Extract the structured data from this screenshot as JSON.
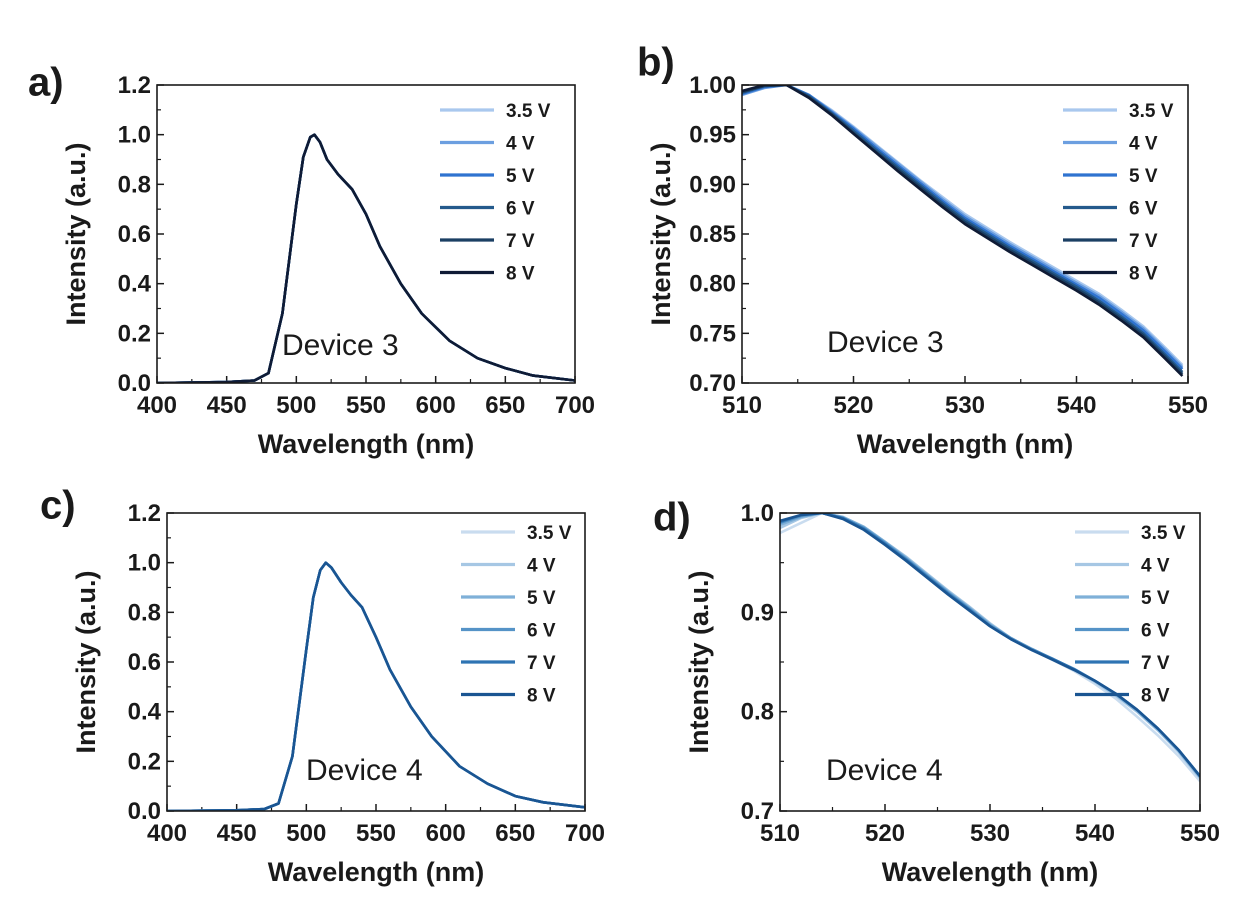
{
  "chart_data": [
    {
      "panel": "a)",
      "type": "line",
      "xlabel": "Wavelength (nm)",
      "ylabel": "Intensity (a.u.)",
      "xlim": [
        400,
        700
      ],
      "ylim": [
        0,
        1.2
      ],
      "xticks": [
        "400",
        "450",
        "500",
        "550",
        "600",
        "650",
        "700"
      ],
      "yticks": [
        "0.0",
        "0.2",
        "0.4",
        "0.6",
        "0.8",
        "1.0",
        "1.2"
      ],
      "annotation": "Device 3",
      "legend_position": "top-right",
      "x": [
        400,
        450,
        470,
        480,
        490,
        500,
        505,
        510,
        513,
        517,
        522,
        530,
        540,
        550,
        560,
        575,
        590,
        610,
        630,
        650,
        670,
        700
      ],
      "series": [
        {
          "name": "3.5 V",
          "color": "#a9c8ee",
          "values": [
            0,
            0.004,
            0.01,
            0.04,
            0.28,
            0.72,
            0.91,
            0.99,
            1.0,
            0.97,
            0.9,
            0.84,
            0.78,
            0.68,
            0.55,
            0.4,
            0.28,
            0.17,
            0.1,
            0.06,
            0.03,
            0.01
          ]
        },
        {
          "name": "4 V",
          "color": "#6c9fe0",
          "values": [
            0,
            0.004,
            0.01,
            0.04,
            0.28,
            0.72,
            0.91,
            0.99,
            1.0,
            0.97,
            0.9,
            0.84,
            0.78,
            0.68,
            0.55,
            0.4,
            0.28,
            0.17,
            0.1,
            0.06,
            0.03,
            0.01
          ]
        },
        {
          "name": "5 V",
          "color": "#2f73d0",
          "values": [
            0,
            0.004,
            0.01,
            0.04,
            0.28,
            0.72,
            0.91,
            0.99,
            1.0,
            0.97,
            0.9,
            0.84,
            0.78,
            0.68,
            0.55,
            0.4,
            0.28,
            0.17,
            0.1,
            0.06,
            0.03,
            0.01
          ]
        },
        {
          "name": "6 V",
          "color": "#245a8c",
          "values": [
            0,
            0.004,
            0.01,
            0.04,
            0.28,
            0.72,
            0.91,
            0.99,
            1.0,
            0.97,
            0.9,
            0.84,
            0.78,
            0.68,
            0.55,
            0.4,
            0.28,
            0.17,
            0.1,
            0.06,
            0.03,
            0.01
          ]
        },
        {
          "name": "7 V",
          "color": "#1b3f63",
          "values": [
            0,
            0.004,
            0.01,
            0.04,
            0.28,
            0.72,
            0.91,
            0.99,
            1.0,
            0.97,
            0.9,
            0.84,
            0.78,
            0.68,
            0.55,
            0.4,
            0.28,
            0.17,
            0.1,
            0.06,
            0.03,
            0.01
          ]
        },
        {
          "name": "8 V",
          "color": "#0f1b35",
          "values": [
            0,
            0.004,
            0.01,
            0.04,
            0.28,
            0.72,
            0.91,
            0.99,
            1.0,
            0.97,
            0.9,
            0.84,
            0.78,
            0.68,
            0.55,
            0.4,
            0.28,
            0.17,
            0.1,
            0.06,
            0.03,
            0.01
          ]
        }
      ]
    },
    {
      "panel": "b)",
      "type": "line",
      "xlabel": "Wavelength (nm)",
      "ylabel": "Intensity (a.u.)",
      "xlim": [
        510,
        550
      ],
      "ylim": [
        0.7,
        1.0
      ],
      "xticks": [
        "510",
        "520",
        "530",
        "540",
        "550"
      ],
      "yticks": [
        "0.70",
        "0.75",
        "0.80",
        "0.85",
        "0.90",
        "0.95",
        "1.00"
      ],
      "annotation": "Device 3",
      "legend_position": "top-right",
      "x": [
        510,
        512,
        514,
        516,
        518,
        520,
        522,
        524,
        526,
        528,
        530,
        532,
        534,
        536,
        538,
        540,
        542,
        544,
        546,
        548,
        549.5
      ],
      "series": [
        {
          "name": "3.5 V",
          "color": "#a9c8ee",
          "values": [
            0.99,
            0.998,
            1.0,
            0.99,
            0.975,
            0.958,
            0.94,
            0.922,
            0.904,
            0.887,
            0.87,
            0.856,
            0.842,
            0.829,
            0.816,
            0.803,
            0.79,
            0.774,
            0.757,
            0.735,
            0.718
          ]
        },
        {
          "name": "4 V",
          "color": "#6c9fe0",
          "values": [
            0.99,
            0.997,
            1.0,
            0.99,
            0.974,
            0.957,
            0.939,
            0.921,
            0.903,
            0.885,
            0.868,
            0.854,
            0.84,
            0.827,
            0.814,
            0.801,
            0.788,
            0.772,
            0.755,
            0.733,
            0.716
          ]
        },
        {
          "name": "5 V",
          "color": "#2f73d0",
          "values": [
            0.991,
            0.998,
            1.0,
            0.99,
            0.973,
            0.956,
            0.937,
            0.919,
            0.901,
            0.883,
            0.866,
            0.852,
            0.838,
            0.825,
            0.812,
            0.799,
            0.786,
            0.77,
            0.753,
            0.731,
            0.714
          ]
        },
        {
          "name": "6 V",
          "color": "#245a8c",
          "values": [
            0.992,
            0.999,
            1.0,
            0.989,
            0.972,
            0.954,
            0.935,
            0.917,
            0.899,
            0.881,
            0.864,
            0.85,
            0.836,
            0.823,
            0.81,
            0.797,
            0.783,
            0.767,
            0.75,
            0.728,
            0.711
          ]
        },
        {
          "name": "7 V",
          "color": "#1b3f63",
          "values": [
            0.993,
            0.999,
            1.0,
            0.988,
            0.971,
            0.952,
            0.933,
            0.915,
            0.897,
            0.879,
            0.862,
            0.848,
            0.834,
            0.821,
            0.808,
            0.795,
            0.781,
            0.765,
            0.748,
            0.726,
            0.709
          ]
        },
        {
          "name": "8 V",
          "color": "#0f1b35",
          "values": [
            0.994,
            1.0,
            1.0,
            0.987,
            0.97,
            0.951,
            0.932,
            0.913,
            0.895,
            0.877,
            0.86,
            0.846,
            0.832,
            0.819,
            0.806,
            0.793,
            0.779,
            0.763,
            0.746,
            0.724,
            0.707
          ]
        }
      ]
    },
    {
      "panel": "c)",
      "type": "line",
      "xlabel": "Wavelength (nm)",
      "ylabel": "Intensity (a.u.)",
      "xlim": [
        400,
        700
      ],
      "ylim": [
        0,
        1.2
      ],
      "xticks": [
        "400",
        "450",
        "500",
        "550",
        "600",
        "650",
        "700"
      ],
      "yticks": [
        "0.0",
        "0.2",
        "0.4",
        "0.6",
        "0.8",
        "1.0",
        "1.2"
      ],
      "annotation": "Device 4",
      "legend_position": "top-right",
      "x": [
        400,
        450,
        470,
        480,
        490,
        500,
        505,
        510,
        514,
        518,
        525,
        532,
        540,
        550,
        560,
        575,
        590,
        610,
        630,
        650,
        670,
        700
      ],
      "series": [
        {
          "name": "3.5 V",
          "color": "#c9dcef",
          "values": [
            0,
            0.003,
            0.008,
            0.03,
            0.22,
            0.65,
            0.86,
            0.97,
            1.0,
            0.98,
            0.92,
            0.87,
            0.82,
            0.7,
            0.57,
            0.42,
            0.3,
            0.18,
            0.11,
            0.06,
            0.035,
            0.015
          ]
        },
        {
          "name": "4 V",
          "color": "#a6c7e4",
          "values": [
            0,
            0.003,
            0.008,
            0.03,
            0.22,
            0.65,
            0.86,
            0.97,
            1.0,
            0.98,
            0.92,
            0.87,
            0.82,
            0.7,
            0.57,
            0.42,
            0.3,
            0.18,
            0.11,
            0.06,
            0.035,
            0.015
          ]
        },
        {
          "name": "5 V",
          "color": "#7fb0d8",
          "values": [
            0,
            0.003,
            0.008,
            0.03,
            0.22,
            0.65,
            0.86,
            0.97,
            1.0,
            0.98,
            0.92,
            0.87,
            0.82,
            0.7,
            0.57,
            0.42,
            0.3,
            0.18,
            0.11,
            0.06,
            0.035,
            0.015
          ]
        },
        {
          "name": "6 V",
          "color": "#5593c7",
          "values": [
            0,
            0.003,
            0.008,
            0.03,
            0.22,
            0.65,
            0.86,
            0.97,
            1.0,
            0.98,
            0.92,
            0.87,
            0.82,
            0.7,
            0.57,
            0.42,
            0.3,
            0.18,
            0.11,
            0.06,
            0.035,
            0.015
          ]
        },
        {
          "name": "7 V",
          "color": "#2e74b3",
          "values": [
            0,
            0.003,
            0.008,
            0.03,
            0.22,
            0.65,
            0.86,
            0.97,
            1.0,
            0.98,
            0.92,
            0.87,
            0.82,
            0.7,
            0.57,
            0.42,
            0.3,
            0.18,
            0.11,
            0.06,
            0.035,
            0.015
          ]
        },
        {
          "name": "8 V",
          "color": "#1a5592",
          "values": [
            0,
            0.003,
            0.008,
            0.03,
            0.22,
            0.65,
            0.86,
            0.97,
            1.0,
            0.98,
            0.92,
            0.87,
            0.82,
            0.7,
            0.57,
            0.42,
            0.3,
            0.18,
            0.11,
            0.06,
            0.035,
            0.015
          ]
        }
      ]
    },
    {
      "panel": "d)",
      "type": "line",
      "xlabel": "Wavelength (nm)",
      "ylabel": "Intensity (a.u.)",
      "xlim": [
        510,
        550
      ],
      "ylim": [
        0.7,
        1.0
      ],
      "xticks": [
        "510",
        "520",
        "530",
        "540",
        "550"
      ],
      "yticks": [
        "0.7",
        "0.8",
        "0.9",
        "1.0"
      ],
      "annotation": "Device 4",
      "legend_position": "top-right",
      "x": [
        510,
        512,
        514,
        516,
        518,
        520,
        522,
        524,
        526,
        528,
        530,
        532,
        534,
        536,
        538,
        540,
        542,
        544,
        546,
        548,
        550
      ],
      "series": [
        {
          "name": "3.5 V",
          "color": "#c9dcef",
          "values": [
            0.98,
            0.99,
            1.0,
            0.995,
            0.985,
            0.97,
            0.955,
            0.938,
            0.921,
            0.905,
            0.888,
            0.873,
            0.862,
            0.852,
            0.841,
            0.828,
            0.813,
            0.795,
            0.776,
            0.755,
            0.73
          ]
        },
        {
          "name": "4 V",
          "color": "#a6c7e4",
          "values": [
            0.985,
            0.995,
            1.0,
            0.996,
            0.986,
            0.971,
            0.956,
            0.939,
            0.922,
            0.906,
            0.889,
            0.874,
            0.863,
            0.853,
            0.842,
            0.83,
            0.816,
            0.8,
            0.781,
            0.759,
            0.733
          ]
        },
        {
          "name": "5 V",
          "color": "#7fb0d8",
          "values": [
            0.988,
            0.996,
            1.0,
            0.996,
            0.986,
            0.971,
            0.955,
            0.938,
            0.921,
            0.905,
            0.888,
            0.874,
            0.863,
            0.853,
            0.843,
            0.831,
            0.817,
            0.801,
            0.782,
            0.76,
            0.734
          ]
        },
        {
          "name": "6 V",
          "color": "#5593c7",
          "values": [
            0.99,
            0.997,
            1.0,
            0.995,
            0.985,
            0.97,
            0.954,
            0.937,
            0.92,
            0.904,
            0.887,
            0.874,
            0.863,
            0.853,
            0.843,
            0.831,
            0.818,
            0.802,
            0.783,
            0.761,
            0.735
          ]
        },
        {
          "name": "7 V",
          "color": "#2e74b3",
          "values": [
            0.991,
            0.998,
            1.0,
            0.995,
            0.984,
            0.969,
            0.953,
            0.936,
            0.919,
            0.903,
            0.886,
            0.873,
            0.862,
            0.853,
            0.843,
            0.831,
            0.818,
            0.802,
            0.783,
            0.761,
            0.735
          ]
        },
        {
          "name": "8 V",
          "color": "#1a5592",
          "values": [
            0.992,
            0.998,
            1.0,
            0.994,
            0.983,
            0.968,
            0.952,
            0.935,
            0.918,
            0.902,
            0.886,
            0.873,
            0.862,
            0.852,
            0.842,
            0.831,
            0.818,
            0.802,
            0.783,
            0.761,
            0.735
          ]
        }
      ]
    }
  ]
}
